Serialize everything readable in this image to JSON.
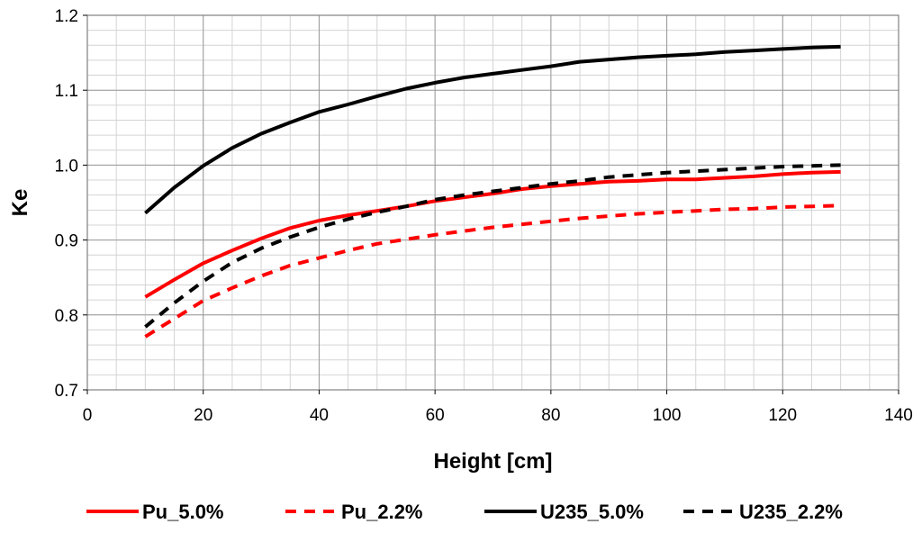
{
  "chart_data": {
    "type": "line",
    "title": "",
    "xlabel": "Height [cm]",
    "ylabel": "Ke",
    "xlim": [
      0,
      140
    ],
    "ylim": [
      0.7,
      1.2
    ],
    "xticks": [
      0,
      20,
      40,
      60,
      80,
      100,
      120,
      140
    ],
    "yticks": [
      0.7,
      0.8,
      0.9,
      1.0,
      1.1,
      1.2
    ],
    "ytick_labels": [
      "0.7",
      "0.8",
      "0.9",
      "1.0",
      "1.1",
      "1.2"
    ],
    "grid": true,
    "legend_position": "bottom",
    "x": [
      10,
      15,
      20,
      25,
      30,
      35,
      40,
      45,
      50,
      55,
      60,
      65,
      70,
      75,
      80,
      85,
      90,
      95,
      100,
      105,
      110,
      115,
      120,
      125,
      130
    ],
    "series": [
      {
        "name": "Pu_5.0%",
        "color": "#ff0000",
        "dash": "solid",
        "values": [
          0.824,
          0.847,
          0.869,
          0.886,
          0.902,
          0.916,
          0.926,
          0.933,
          0.939,
          0.945,
          0.952,
          0.957,
          0.962,
          0.968,
          0.972,
          0.975,
          0.978,
          0.979,
          0.981,
          0.981,
          0.983,
          0.985,
          0.988,
          0.99,
          0.991
        ]
      },
      {
        "name": "Pu_2.2%",
        "color": "#ff0000",
        "dash": "dashed",
        "values": [
          0.771,
          0.795,
          0.819,
          0.836,
          0.852,
          0.866,
          0.876,
          0.886,
          0.895,
          0.901,
          0.907,
          0.912,
          0.917,
          0.921,
          0.925,
          0.929,
          0.932,
          0.935,
          0.937,
          0.939,
          0.941,
          0.942,
          0.944,
          0.945,
          0.946
        ]
      },
      {
        "name": "U235_5.0%",
        "color": "#000000",
        "dash": "solid",
        "values": [
          0.936,
          0.97,
          0.999,
          1.023,
          1.042,
          1.057,
          1.071,
          1.081,
          1.092,
          1.102,
          1.11,
          1.117,
          1.122,
          1.127,
          1.132,
          1.138,
          1.141,
          1.144,
          1.146,
          1.148,
          1.151,
          1.153,
          1.155,
          1.157,
          1.158
        ]
      },
      {
        "name": "U235_2.2%",
        "color": "#000000",
        "dash": "dashed",
        "values": [
          0.784,
          0.816,
          0.845,
          0.87,
          0.889,
          0.904,
          0.917,
          0.928,
          0.937,
          0.945,
          0.954,
          0.96,
          0.965,
          0.97,
          0.975,
          0.979,
          0.984,
          0.987,
          0.99,
          0.992,
          0.994,
          0.996,
          0.998,
          0.999,
          1.0
        ]
      }
    ]
  }
}
